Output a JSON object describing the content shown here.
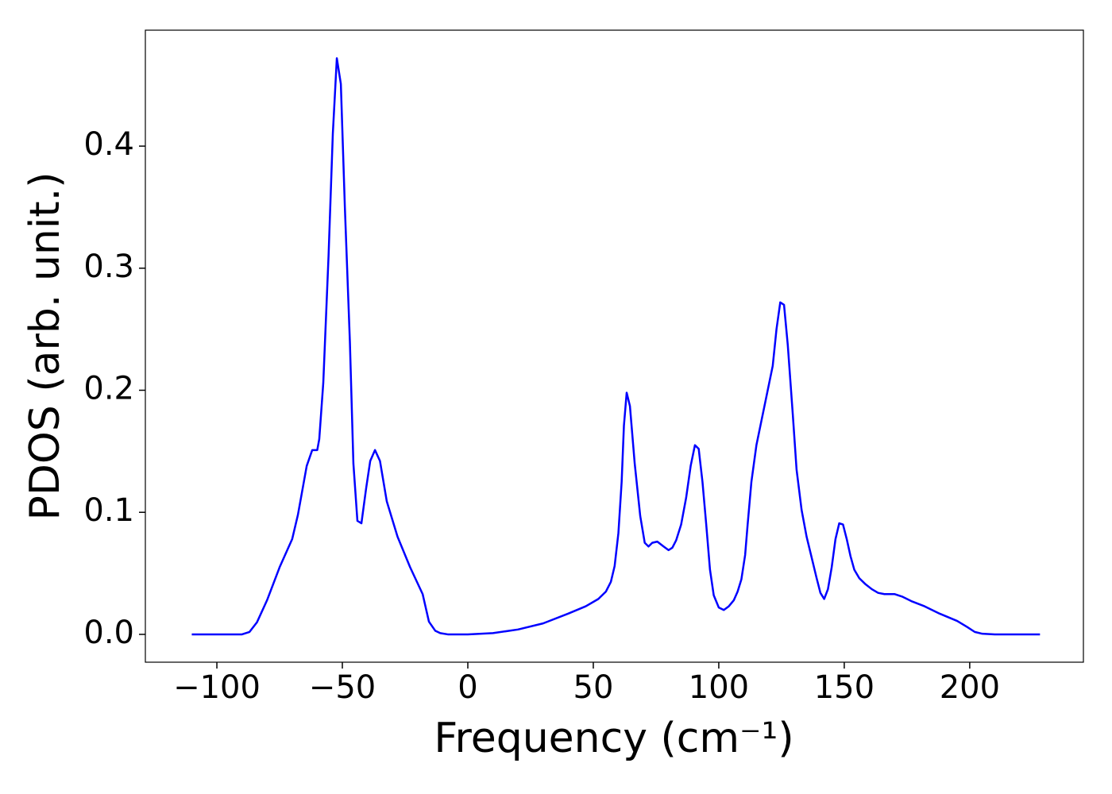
{
  "chart_data": {
    "type": "line",
    "xlabel": "Frequency (cm⁻¹)",
    "ylabel": "PDOS (arb. unit.)",
    "color": "#0000ff",
    "xlim": [
      -128.5,
      245.3
    ],
    "ylim": [
      -0.0228,
      0.495
    ],
    "xticks": [
      {
        "value": -100,
        "label": "−100"
      },
      {
        "value": -50,
        "label": "−50"
      },
      0,
      50,
      100,
      150,
      200
    ],
    "yticks": [
      {
        "value": 0,
        "label": "0.0"
      },
      0.1,
      0.2,
      0.3,
      0.4
    ],
    "x": [
      -110,
      -90,
      -87,
      -84,
      -80,
      -75,
      -70,
      -67.7,
      -64.2,
      -62,
      -60,
      -59.2,
      -57.6,
      -55.5,
      -53.8,
      -52.2,
      -50.6,
      -49,
      -47,
      -45.6,
      -44,
      -42.4,
      -40.5,
      -38.9,
      -37,
      -35,
      -32.3,
      -28,
      -23,
      -18,
      -15.5,
      -13,
      -11,
      -8,
      0,
      10,
      20,
      30,
      40,
      47,
      52,
      55,
      57,
      58.5,
      60,
      61.3,
      62.2,
      63.3,
      64.6,
      66.5,
      68.7,
      70.5,
      72,
      73.5,
      75.5,
      78,
      80,
      81.5,
      83,
      85,
      87,
      88.8,
      90.5,
      92,
      93.5,
      95,
      96.5,
      98,
      100,
      102,
      104,
      106,
      107.5,
      109,
      110.5,
      111.5,
      113,
      115,
      117,
      119.5,
      121.5,
      123,
      124.5,
      126,
      127.5,
      129.5,
      131,
      133,
      135,
      137,
      139,
      140.5,
      142,
      143.5,
      145,
      146.5,
      148,
      149.5,
      151,
      152.5,
      154,
      156,
      158.5,
      161,
      163.5,
      166,
      170,
      173,
      177,
      182,
      188,
      195,
      199,
      202,
      205,
      210,
      228
    ],
    "values": [
      0,
      0,
      0.002,
      0.01,
      0.028,
      0.055,
      0.078,
      0.098,
      0.138,
      0.151,
      0.151,
      0.16,
      0.206,
      0.31,
      0.41,
      0.472,
      0.451,
      0.35,
      0.24,
      0.14,
      0.093,
      0.091,
      0.12,
      0.142,
      0.151,
      0.142,
      0.109,
      0.08,
      0.055,
      0.033,
      0.0104,
      0.003,
      0.001,
      0,
      0,
      0.001,
      0.004,
      0.009,
      0.017,
      0.023,
      0.029,
      0.035,
      0.043,
      0.056,
      0.083,
      0.125,
      0.171,
      0.198,
      0.187,
      0.14,
      0.097,
      0.075,
      0.072,
      0.075,
      0.076,
      0.072,
      0.069,
      0.071,
      0.077,
      0.09,
      0.112,
      0.138,
      0.155,
      0.152,
      0.125,
      0.09,
      0.053,
      0.032,
      0.022,
      0.02,
      0.023,
      0.028,
      0.035,
      0.045,
      0.065,
      0.09,
      0.125,
      0.155,
      0.175,
      0.2,
      0.22,
      0.25,
      0.272,
      0.27,
      0.237,
      0.18,
      0.135,
      0.102,
      0.08,
      0.063,
      0.046,
      0.034,
      0.029,
      0.037,
      0.055,
      0.078,
      0.091,
      0.09,
      0.078,
      0.064,
      0.053,
      0.046,
      0.041,
      0.037,
      0.034,
      0.033,
      0.033,
      0.031,
      0.027,
      0.023,
      0.017,
      0.011,
      0.006,
      0.002,
      0.0005,
      0,
      0
    ]
  }
}
